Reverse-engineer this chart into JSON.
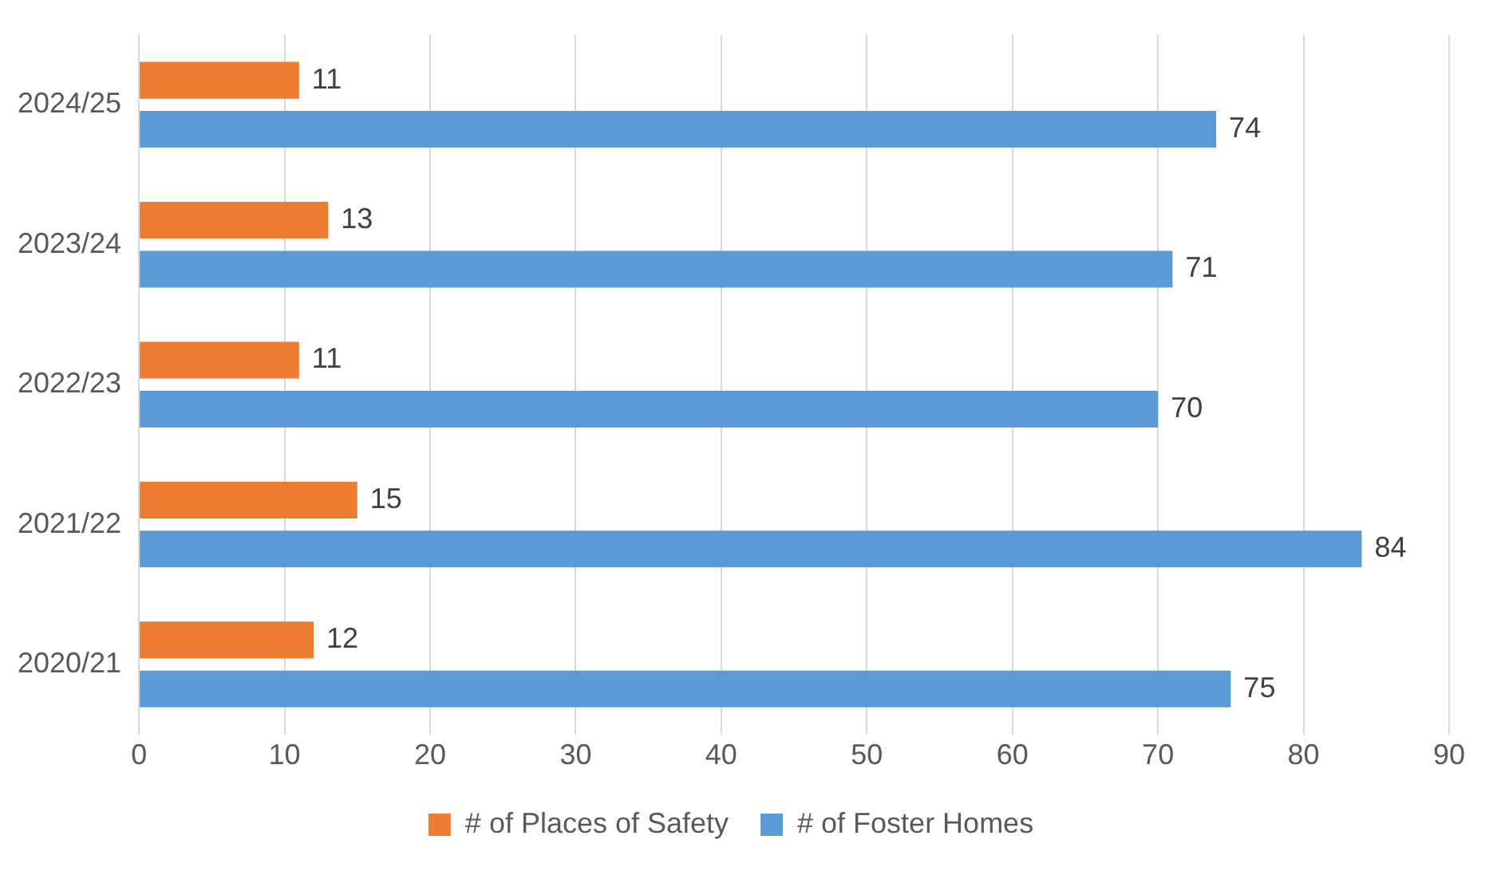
{
  "chart_data": {
    "type": "bar",
    "orientation": "horizontal",
    "categories": [
      "2024/25",
      "2023/24",
      "2022/23",
      "2021/22",
      "2020/21"
    ],
    "series": [
      {
        "name": "# of Places of Safety",
        "color": "#ed7d31",
        "values": [
          11,
          13,
          11,
          15,
          12
        ]
      },
      {
        "name": "# of Foster Homes",
        "color": "#5b9bd5",
        "values": [
          74,
          71,
          70,
          84,
          75
        ]
      }
    ],
    "xlim": [
      0,
      90
    ],
    "xticks": [
      0,
      10,
      20,
      30,
      40,
      50,
      60,
      70,
      80,
      90
    ],
    "grid": "x",
    "legend": "bottom",
    "data_labels": true
  }
}
